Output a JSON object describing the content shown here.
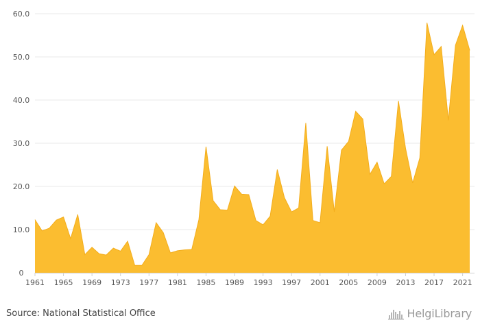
{
  "chart_data": {
    "type": "area",
    "x": [
      1961,
      1962,
      1963,
      1964,
      1965,
      1966,
      1967,
      1968,
      1969,
      1970,
      1971,
      1972,
      1973,
      1974,
      1975,
      1976,
      1977,
      1978,
      1979,
      1980,
      1981,
      1982,
      1983,
      1984,
      1985,
      1986,
      1987,
      1988,
      1989,
      1990,
      1991,
      1992,
      1993,
      1994,
      1995,
      1996,
      1997,
      1998,
      1999,
      2000,
      2001,
      2002,
      2003,
      2004,
      2005,
      2006,
      2007,
      2008,
      2009,
      2010,
      2011,
      2012,
      2013,
      2014,
      2015,
      2016,
      2017,
      2018,
      2019,
      2020,
      2021,
      2022
    ],
    "values": [
      12.3,
      9.7,
      10.3,
      12.2,
      12.9,
      7.9,
      13.5,
      4.2,
      5.9,
      4.4,
      4.1,
      5.7,
      5.0,
      7.3,
      1.7,
      1.7,
      4.2,
      11.6,
      9.3,
      4.6,
      5.1,
      5.3,
      5.4,
      12.3,
      29.2,
      16.7,
      14.6,
      14.5,
      20.1,
      18.2,
      18.1,
      12.1,
      11.1,
      13.1,
      23.9,
      17.4,
      14.1,
      15.0,
      34.7,
      12.1,
      11.6,
      29.3,
      14.1,
      28.4,
      30.4,
      37.4,
      35.6,
      22.8,
      25.6,
      20.6,
      22.3,
      39.8,
      28.8,
      20.8,
      26.6,
      57.9,
      50.5,
      52.4,
      35.3,
      52.7,
      57.3,
      51.5
    ],
    "xticks": [
      "1961",
      "1965",
      "1969",
      "1973",
      "1977",
      "1981",
      "1985",
      "1989",
      "1993",
      "1997",
      "2001",
      "2005",
      "2009",
      "2013",
      "2017",
      "2021"
    ],
    "yticks": [
      "0",
      "10.0",
      "20.0",
      "30.0",
      "40.0",
      "50.0",
      "60.0"
    ],
    "ylim": [
      0,
      60
    ],
    "grid": true,
    "fill_color": "#fbbd30",
    "stroke_color": "#f3ad1c"
  },
  "footer": {
    "source": "Source: National Statistical Office",
    "brand": "HelgiLibrary"
  },
  "icons": {
    "brand_logo": "helgi-library-logo-icon"
  }
}
